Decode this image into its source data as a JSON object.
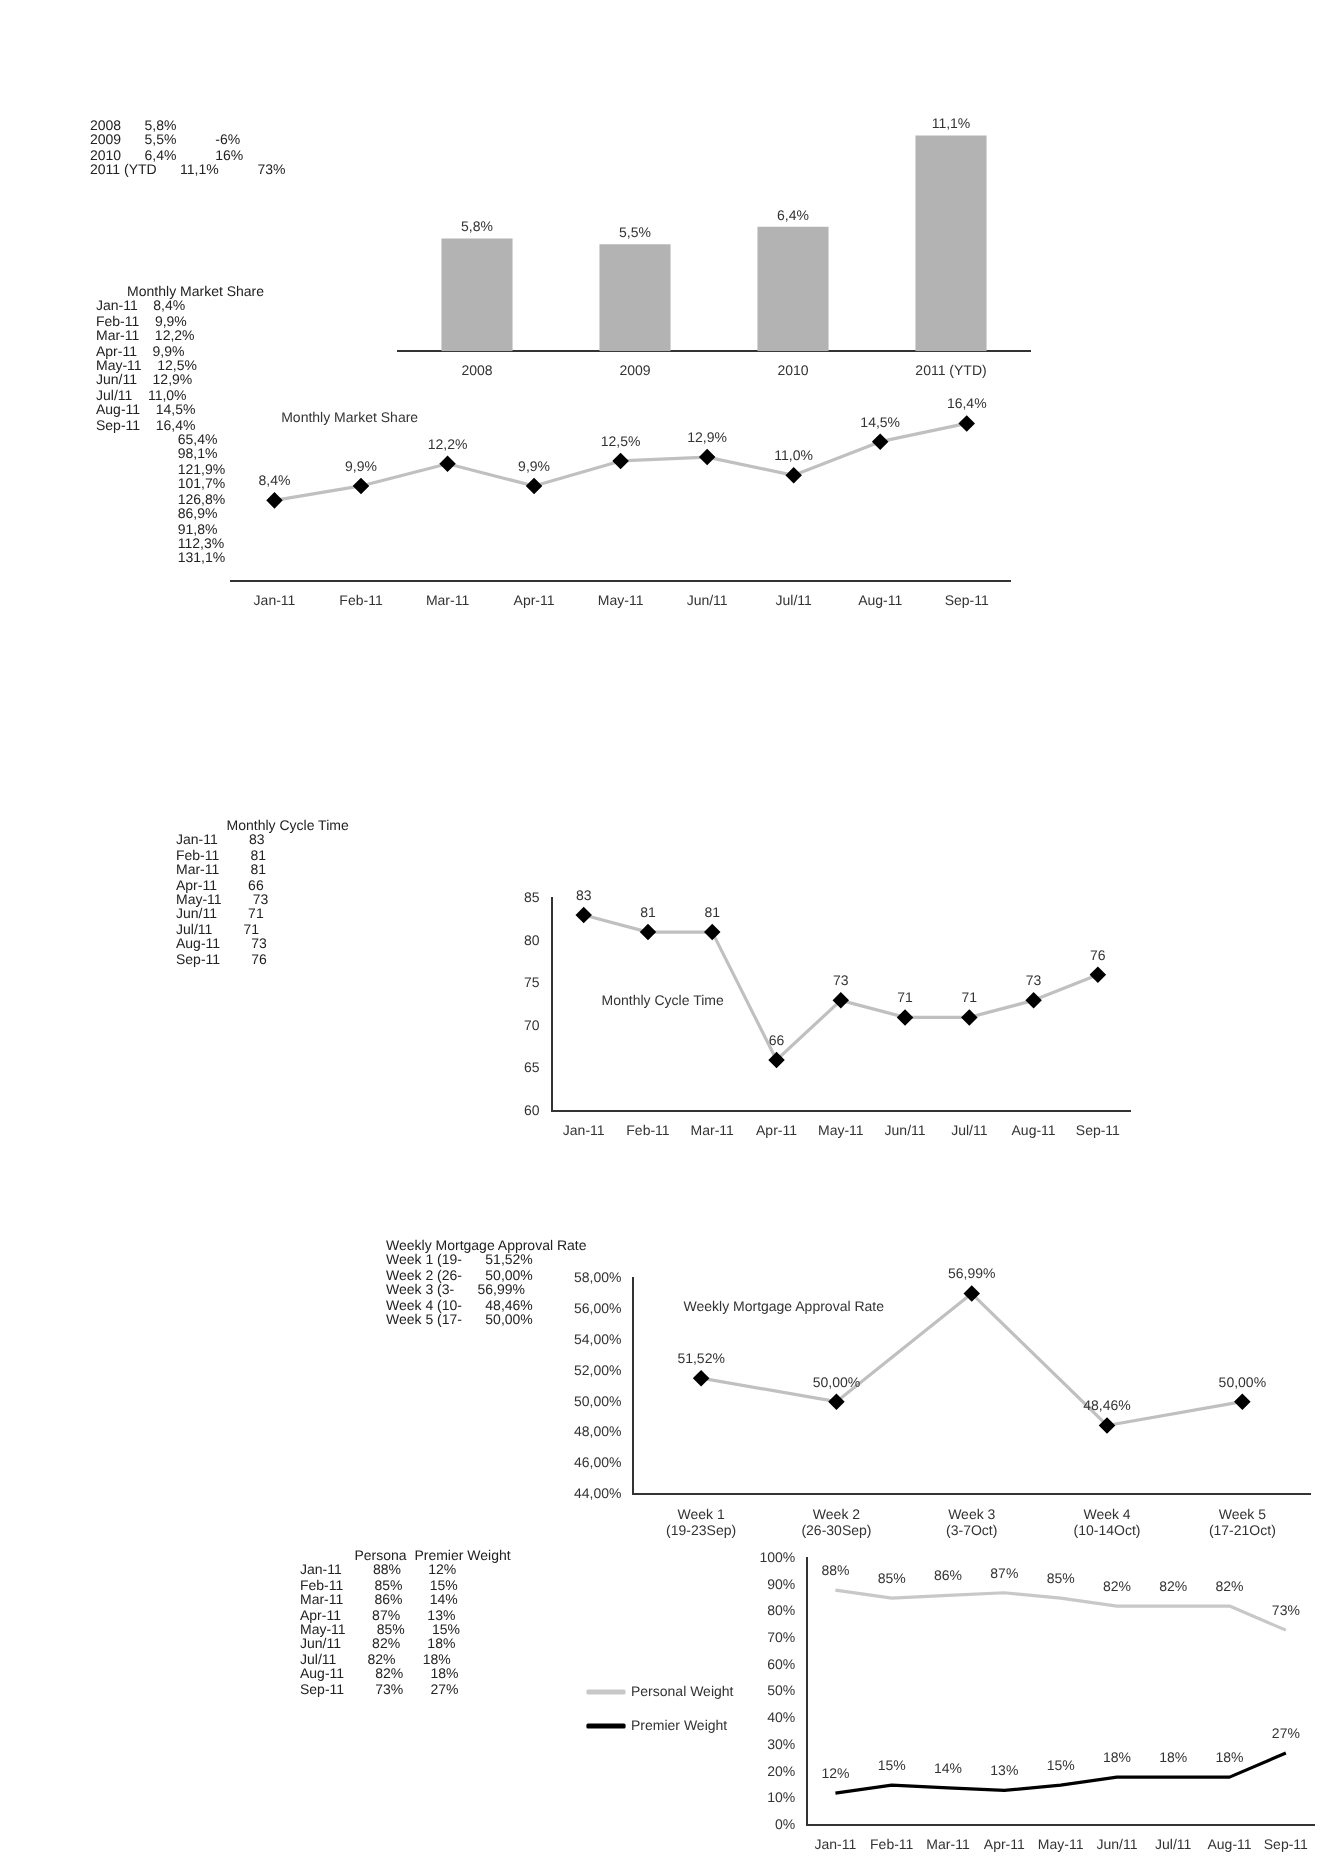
{
  "chart_data": [
    {
      "type": "bar",
      "categories": [
        "2008",
        "2009",
        "2010",
        "2011 (YTD)"
      ],
      "values": [
        5.8,
        5.5,
        6.4,
        11.1
      ],
      "color": "#b3b3b3",
      "value_labels": [
        "5,8%",
        "5,5%",
        "6,4%",
        "11,1%"
      ],
      "tick_labels": "x",
      "grid": false,
      "legend": false,
      "annotations": [
        "2008      5,8%",
        "2009      5,5%          -6%",
        "2010      6,4%          16%",
        "2011 (YTD      11,1%          73%"
      ]
    },
    {
      "type": "line",
      "title": "Monthly Market Share",
      "categories": [
        "Jan-11",
        "Feb-11",
        "Mar-11",
        "Apr-11",
        "May-11",
        "Jun/11",
        "Jul/11",
        "Aug-11",
        "Sep-11"
      ],
      "series": [
        {
          "color": "#c0c0c0",
          "colors": [
            "#000000",
            "#000000",
            "#000000",
            "#000000",
            "#000000",
            "#000000",
            "#000000",
            "#000000",
            "#000000"
          ],
          "values": [
            8.4,
            9.9,
            12.2,
            9.9,
            12.5,
            12.9,
            11.0,
            14.5,
            16.4
          ],
          "value_labels": [
            "8,4%",
            "9,9%",
            "12,2%",
            "9,9%",
            "12,5%",
            "12,9%",
            "11,0%",
            "14,5%",
            "16,4%"
          ]
        }
      ],
      "marker": "diamond",
      "tick_labels": "x",
      "grid": false,
      "legend": false,
      "annotations": [
        "        Monthly Market Share",
        "Jan-11    8,4%",
        "Feb-11    9,9%",
        "Mar-11    12,2%",
        "Apr-11    9,9%",
        "May-11    12,5%",
        "Jun/11    12,9%",
        "Jul/11    11,0%",
        "Aug-11    14,5%",
        "Sep-11    16,4%",
        "                     65,4%",
        "                     98,1%",
        "                     121,9%",
        "                     101,7%",
        "                     126,8%",
        "                     86,9%",
        "                     91,8%",
        "                     112,3%",
        "                     131,1%"
      ]
    },
    {
      "type": "line",
      "title": "Monthly Cycle Time",
      "categories": [
        "Jan-11",
        "Feb-11",
        "Mar-11",
        "Apr-11",
        "May-11",
        "Jun/11",
        "Jul/11",
        "Aug-11",
        "Sep-11"
      ],
      "series": [
        {
          "color": "#c0c0c0",
          "colors": [
            "#000000",
            "#000000",
            "#000000",
            "#000000",
            "#000000",
            "#000000",
            "#000000",
            "#000000",
            "#000000"
          ],
          "values": [
            83,
            81,
            81,
            66,
            73,
            71,
            71,
            73,
            76
          ]
        }
      ],
      "data_labels": true,
      "marker": "diamond",
      "ylim": [
        60,
        85
      ],
      "yticks": [
        60,
        65,
        70,
        75,
        80,
        85
      ],
      "grid": false,
      "legend": false,
      "annotations": [
        "             Monthly Cycle Time",
        "Jan-11        83",
        "Feb-11        81",
        "Mar-11        81",
        "Apr-11        66",
        "May-11        73",
        "Jun/11        71",
        "Jul/11        71",
        "Aug-11        73",
        "Sep-11        76"
      ]
    },
    {
      "type": "line",
      "title": "Weekly Mortgage Approval Rate",
      "categories": [
        "Week 1\n(19-23Sep)",
        "Week 2\n(26-30Sep)",
        "Week 3\n(3-7Oct)",
        "Week 4\n(10-14Oct)",
        "Week 5\n(17-21Oct)"
      ],
      "series": [
        {
          "color": "#c0c0c0",
          "colors": [
            "#000000",
            "#000000",
            "#000000",
            "#000000",
            "#000000"
          ],
          "values": [
            51.52,
            50.0,
            56.99,
            48.46,
            50.0
          ],
          "value_labels": [
            "51,52%",
            "50,00%",
            "56,99%",
            "48,46%",
            "50,00%"
          ]
        }
      ],
      "marker": "diamond",
      "ylim": [
        44,
        58
      ],
      "yticks": [
        {
          "value": 44,
          "label": "44,00%"
        },
        {
          "value": 46,
          "label": "46,00%"
        },
        {
          "value": 48,
          "label": "48,00%"
        },
        {
          "value": 50,
          "label": "50,00%"
        },
        {
          "value": 52,
          "label": "52,00%"
        },
        {
          "value": 54,
          "label": "54,00%"
        },
        {
          "value": 56,
          "label": "56,00%"
        },
        {
          "value": 58,
          "label": "58,00%"
        }
      ],
      "grid": false,
      "legend": false,
      "annotations": [
        "Weekly Mortgage Approval Rate",
        "Week 1 (19-      51,52%",
        "Week 2 (26-      50,00%",
        "Week 3 (3-      56,99%",
        "Week 4 (10-      48,46%",
        "Week 5 (17-      50,00%"
      ]
    },
    {
      "type": "line",
      "categories": [
        "Jan-11",
        "Feb-11",
        "Mar-11",
        "Apr-11",
        "May-11",
        "Jun/11",
        "Jul/11",
        "Aug-11",
        "Sep-11"
      ],
      "series": [
        {
          "name": "Personal Weight",
          "color": "#c8c8c8",
          "values": [
            88,
            85,
            86,
            87,
            85,
            82,
            82,
            82,
            73
          ],
          "value_labels": [
            "88%",
            "85%",
            "86%",
            "87%",
            "85%",
            "82%",
            "82%",
            "82%",
            "73%"
          ]
        },
        {
          "name": "Premier Weight",
          "color": "#000000",
          "values": [
            12,
            15,
            14,
            13,
            15,
            18,
            18,
            18,
            27
          ],
          "value_labels": [
            "12%",
            "15%",
            "14%",
            "13%",
            "15%",
            "18%",
            "18%",
            "18%",
            "27%"
          ]
        }
      ],
      "marker": "none",
      "ylim": [
        0,
        100
      ],
      "yticks": [
        {
          "value": 0,
          "label": "0%"
        },
        {
          "value": 10,
          "label": "10%"
        },
        {
          "value": 20,
          "label": "20%"
        },
        {
          "value": 30,
          "label": "30%"
        },
        {
          "value": 40,
          "label": "40%"
        },
        {
          "value": 50,
          "label": "50%"
        },
        {
          "value": 60,
          "label": "60%"
        },
        {
          "value": 70,
          "label": "70%"
        },
        {
          "value": 80,
          "label": "80%"
        },
        {
          "value": 90,
          "label": "90%"
        },
        {
          "value": 100,
          "label": "100%"
        }
      ],
      "grid": false,
      "legend": "left",
      "annotations": [
        "              Persona  Premier Weight",
        "Jan-11        88%       12%",
        "Feb-11        85%       15%",
        "Mar-11        86%       14%",
        "Apr-11        87%       13%",
        "May-11        85%       15%",
        "Jun/11        82%       18%",
        "Jul/11        82%       18%",
        "Aug-11        82%       18%",
        "Sep-11        73%       27%"
      ]
    }
  ]
}
